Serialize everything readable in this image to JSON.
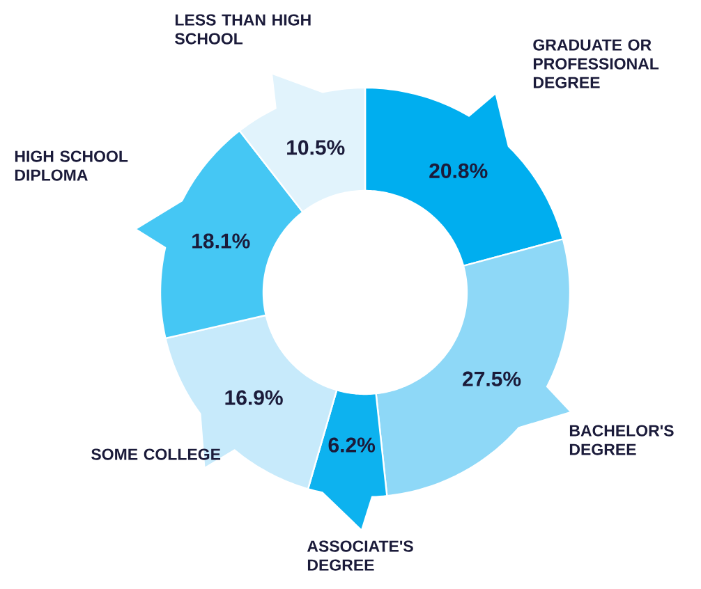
{
  "chart_data": {
    "type": "donut",
    "categories": [
      "GRADUATE OR PROFESSIONAL DEGREE",
      "BACHELOR'S DEGREE",
      "ASSOCIATE'S DEGREE",
      "SOME COLLEGE",
      "HIGH SCHOOL DIPLOMA",
      "LESS THAN HIGH SCHOOL"
    ],
    "values": [
      20.8,
      27.5,
      6.2,
      16.9,
      18.1,
      10.5
    ],
    "value_labels": [
      "20.8%",
      "27.5%",
      "6.2%",
      "16.9%",
      "18.1%",
      "10.5%"
    ],
    "colors": [
      "#00aeef",
      "#8ed8f7",
      "#0db2ef",
      "#c7eafb",
      "#45c7f4",
      "#e1f3fc"
    ]
  }
}
